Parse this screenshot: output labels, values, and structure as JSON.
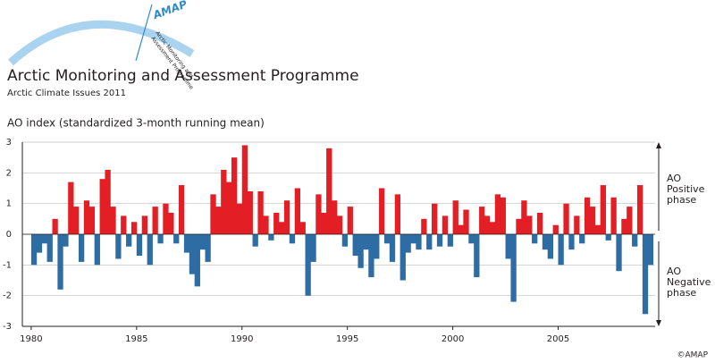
{
  "header": {
    "logo": "AMAP",
    "logo_text": [
      "Arctic Monitoring and",
      "Assessment Programme"
    ],
    "title": "Arctic Monitoring and Assessment Programme",
    "subtitle": "Arctic Climate Issues 2011"
  },
  "chart_data": {
    "type": "area",
    "title": "AO index (standardized 3-month running mean)",
    "x": [
      1980,
      1980.25,
      1980.5,
      1980.75,
      1981,
      1981.25,
      1981.5,
      1981.75,
      1982,
      1982.25,
      1982.5,
      1982.75,
      1983,
      1983.25,
      1983.5,
      1983.75,
      1984,
      1984.25,
      1984.5,
      1984.75,
      1985,
      1985.25,
      1985.5,
      1985.75,
      1986,
      1986.25,
      1986.5,
      1986.75,
      1987,
      1987.25,
      1987.5,
      1987.75,
      1988,
      1988.25,
      1988.5,
      1988.75,
      1989,
      1989.25,
      1989.5,
      1989.75,
      1990,
      1990.25,
      1990.5,
      1990.75,
      1991,
      1991.25,
      1991.5,
      1991.75,
      1992,
      1992.25,
      1992.5,
      1992.75,
      1993,
      1993.25,
      1993.5,
      1993.75,
      1994,
      1994.25,
      1994.5,
      1994.75,
      1995,
      1995.25,
      1995.5,
      1995.75,
      1996,
      1996.25,
      1996.5,
      1996.75,
      1997,
      1997.25,
      1997.5,
      1997.75,
      1998,
      1998.25,
      1998.5,
      1998.75,
      1999,
      1999.25,
      1999.5,
      1999.75,
      2000,
      2000.25,
      2000.5,
      2000.75,
      2001,
      2001.25,
      2001.5,
      2001.75,
      2002,
      2002.25,
      2002.5,
      2002.75,
      2003,
      2003.25,
      2003.5,
      2003.75,
      2004,
      2004.25,
      2004.5,
      2004.75,
      2005,
      2005.25,
      2005.5,
      2005.75,
      2006,
      2006.25,
      2006.5,
      2006.75,
      2007,
      2007.25,
      2007.5,
      2007.75,
      2008,
      2008.25,
      2008.5,
      2008.75,
      2009,
      2009.25
    ],
    "values": [
      -1.0,
      -0.6,
      -0.3,
      -0.9,
      0.5,
      -1.8,
      -0.4,
      1.7,
      0.9,
      -0.9,
      1.1,
      0.9,
      -1.0,
      1.8,
      2.1,
      0.9,
      -0.8,
      0.6,
      -0.4,
      0.4,
      -0.7,
      0.6,
      -1.0,
      0.9,
      -0.3,
      1.0,
      0.7,
      -0.3,
      1.6,
      -0.6,
      -1.3,
      -1.7,
      -0.5,
      -0.9,
      1.3,
      0.9,
      2.1,
      1.7,
      2.5,
      1.0,
      2.9,
      1.4,
      -0.4,
      1.4,
      0.6,
      -0.2,
      0.7,
      0.4,
      1.1,
      -0.3,
      1.5,
      0.4,
      -2.0,
      -0.9,
      1.3,
      0.7,
      2.8,
      1.1,
      0.6,
      -0.4,
      0.9,
      -0.7,
      -1.1,
      -0.5,
      -1.4,
      -0.8,
      1.5,
      -0.3,
      -0.9,
      1.3,
      -1.5,
      -0.6,
      -0.3,
      -0.5,
      0.5,
      -0.5,
      1.0,
      -0.4,
      0.6,
      -0.4,
      1.1,
      0.3,
      0.8,
      -0.3,
      -1.4,
      0.9,
      0.6,
      0.4,
      1.3,
      1.2,
      -0.8,
      -2.2,
      0.5,
      1.1,
      0.6,
      -0.3,
      0.7,
      -0.5,
      -0.8,
      0.3,
      -1.0,
      1.0,
      -0.5,
      0.6,
      -0.3,
      1.2,
      0.9,
      0.3,
      1.6,
      -0.2,
      1.2,
      -1.2,
      0.5,
      0.9,
      -0.4,
      1.6,
      -2.6,
      -1.0
    ],
    "positive_color": "#e31e24",
    "negative_color": "#2e6da4",
    "xlim": [
      1979.58,
      2009.6
    ],
    "ylim": [
      -3,
      3
    ],
    "xticks": [
      1980,
      1985,
      1990,
      1995,
      2000,
      2005
    ],
    "yticks": [
      -3,
      -2,
      -1,
      0,
      1,
      2,
      3
    ],
    "grid": true,
    "annotations": {
      "positive": [
        "AO",
        "Positive",
        "phase"
      ],
      "negative": [
        "AO",
        "Negative",
        "phase"
      ]
    },
    "credit": "©AMAP"
  }
}
